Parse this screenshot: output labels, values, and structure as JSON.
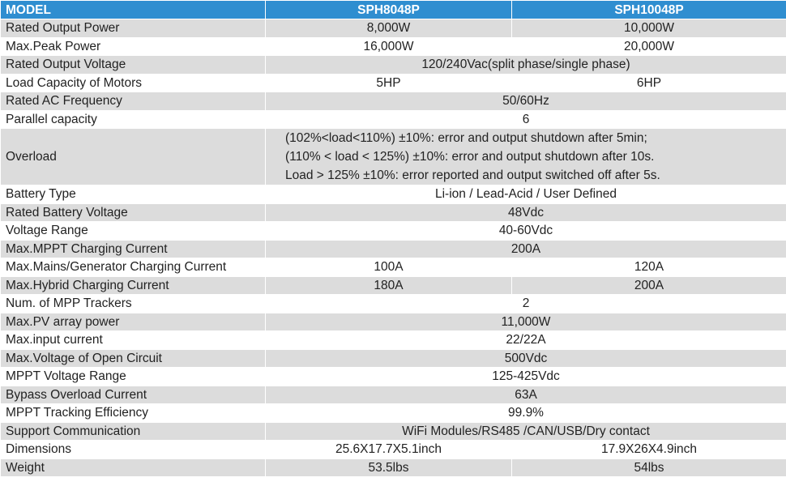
{
  "header": {
    "model": "MODEL",
    "col1": "SPH8048P",
    "col2": "SPH10048P"
  },
  "rows": [
    {
      "label": "Rated Output Power",
      "v1": "8,000W",
      "v2": "10,000W"
    },
    {
      "label": "Max.Peak Power",
      "v1": "16,000W",
      "v2": "20,000W"
    },
    {
      "label": "Rated Output Voltage",
      "span": "120/240Vac(split phase/single phase)"
    },
    {
      "label": "Load Capacity of Motors",
      "v1": "5HP",
      "v2": "6HP"
    },
    {
      "label": "Rated AC Frequency",
      "span": "50/60Hz"
    },
    {
      "label": "Parallel capacity",
      "span": "6"
    },
    {
      "label": "Overload",
      "lines": [
        "(102%<load<110%) ±10%: error and output shutdown after 5min;",
        "(110% < load < 125%) ±10%: error and output shutdown after 10s.",
        "Load > 125% ±10%: error reported and output switched off after 5s."
      ]
    },
    {
      "label": "Battery Type",
      "span": "Li-ion / Lead-Acid / User Defined"
    },
    {
      "label": "Rated Battery Voltage",
      "span": "48Vdc"
    },
    {
      "label": "Voltage Range",
      "span": "40-60Vdc"
    },
    {
      "label": "Max.MPPT Charging Current",
      "span": "200A"
    },
    {
      "label": "Max.Mains/Generator Charging Current",
      "v1": "100A",
      "v2": "120A"
    },
    {
      "label": "Max.Hybrid Charging Current",
      "v1": "180A",
      "v2": "200A"
    },
    {
      "label": "Num. of MPP Trackers",
      "span": "2"
    },
    {
      "label": "Max.PV array power",
      "span": "11,000W"
    },
    {
      "label": "Max.input current",
      "span": "22/22A"
    },
    {
      "label": "Max.Voltage of Open Circuit",
      "span": "500Vdc"
    },
    {
      "label": "MPPT Voltage Range",
      "span": "125-425Vdc"
    },
    {
      "label": "Bypass Overload Current",
      "span": "63A"
    },
    {
      "label": "MPPT Tracking Efficiency",
      "span": "99.9%"
    },
    {
      "label": "Support Communication",
      "span": "WiFi Modules/RS485 /CAN/USB/Dry contact"
    },
    {
      "label": "Dimensions",
      "v1": "25.6X17.7X5.1inch",
      "v2": "17.9X26X4.9inch"
    },
    {
      "label": "Weight",
      "v1": "53.5lbs",
      "v2": "54lbs"
    }
  ]
}
